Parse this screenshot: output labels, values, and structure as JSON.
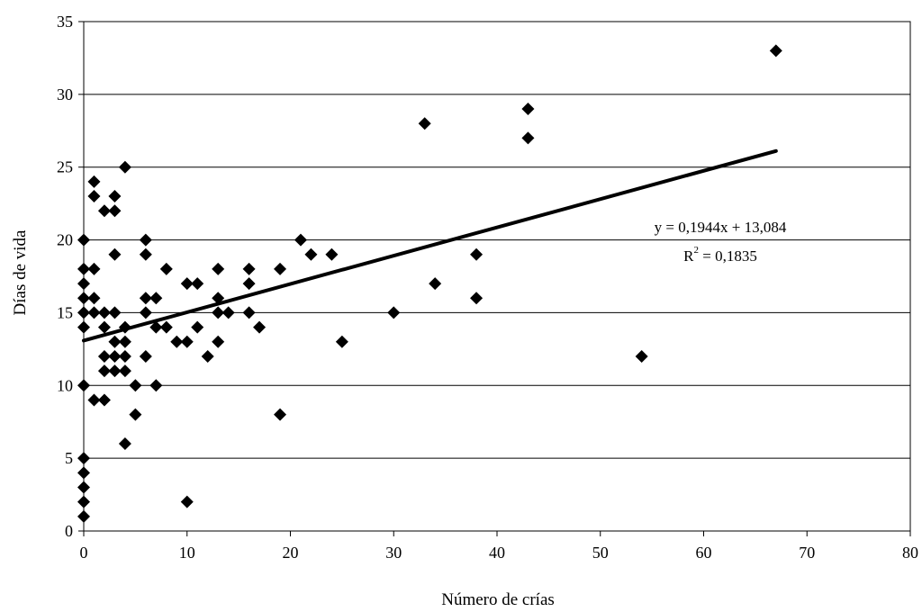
{
  "chart_data": {
    "type": "scatter",
    "title": "",
    "xlabel": "Número de crías",
    "ylabel": "Días de vida",
    "xlim": [
      0,
      80
    ],
    "ylim": [
      0,
      35
    ],
    "xticks": [
      0,
      10,
      20,
      30,
      40,
      50,
      60,
      70,
      80
    ],
    "yticks": [
      0,
      5,
      10,
      15,
      20,
      25,
      30,
      35
    ],
    "grid": "horizontal",
    "legend": "none",
    "marker": "diamond",
    "color": "#000000",
    "points": [
      {
        "x": 0,
        "y": 1
      },
      {
        "x": 0,
        "y": 2
      },
      {
        "x": 0,
        "y": 3
      },
      {
        "x": 0,
        "y": 4
      },
      {
        "x": 0,
        "y": 5
      },
      {
        "x": 0,
        "y": 10
      },
      {
        "x": 0,
        "y": 14
      },
      {
        "x": 0,
        "y": 15
      },
      {
        "x": 0,
        "y": 16
      },
      {
        "x": 0,
        "y": 17
      },
      {
        "x": 0,
        "y": 18
      },
      {
        "x": 0,
        "y": 20
      },
      {
        "x": 1,
        "y": 9
      },
      {
        "x": 1,
        "y": 15
      },
      {
        "x": 1,
        "y": 16
      },
      {
        "x": 1,
        "y": 18
      },
      {
        "x": 1,
        "y": 23
      },
      {
        "x": 1,
        "y": 24
      },
      {
        "x": 2,
        "y": 9
      },
      {
        "x": 2,
        "y": 11
      },
      {
        "x": 2,
        "y": 12
      },
      {
        "x": 2,
        "y": 14
      },
      {
        "x": 2,
        "y": 15
      },
      {
        "x": 2,
        "y": 22
      },
      {
        "x": 3,
        "y": 11
      },
      {
        "x": 3,
        "y": 12
      },
      {
        "x": 3,
        "y": 13
      },
      {
        "x": 3,
        "y": 15
      },
      {
        "x": 3,
        "y": 19
      },
      {
        "x": 3,
        "y": 22
      },
      {
        "x": 3,
        "y": 23
      },
      {
        "x": 4,
        "y": 6
      },
      {
        "x": 4,
        "y": 11
      },
      {
        "x": 4,
        "y": 12
      },
      {
        "x": 4,
        "y": 13
      },
      {
        "x": 4,
        "y": 14
      },
      {
        "x": 4,
        "y": 25
      },
      {
        "x": 5,
        "y": 8
      },
      {
        "x": 5,
        "y": 10
      },
      {
        "x": 6,
        "y": 12
      },
      {
        "x": 6,
        "y": 15
      },
      {
        "x": 6,
        "y": 16
      },
      {
        "x": 6,
        "y": 19
      },
      {
        "x": 6,
        "y": 20
      },
      {
        "x": 7,
        "y": 10
      },
      {
        "x": 7,
        "y": 14
      },
      {
        "x": 7,
        "y": 16
      },
      {
        "x": 8,
        "y": 14
      },
      {
        "x": 8,
        "y": 18
      },
      {
        "x": 9,
        "y": 13
      },
      {
        "x": 10,
        "y": 2
      },
      {
        "x": 10,
        "y": 13
      },
      {
        "x": 10,
        "y": 17
      },
      {
        "x": 11,
        "y": 14
      },
      {
        "x": 11,
        "y": 17
      },
      {
        "x": 12,
        "y": 12
      },
      {
        "x": 13,
        "y": 13
      },
      {
        "x": 13,
        "y": 15
      },
      {
        "x": 13,
        "y": 16
      },
      {
        "x": 13,
        "y": 18
      },
      {
        "x": 14,
        "y": 15
      },
      {
        "x": 16,
        "y": 15
      },
      {
        "x": 16,
        "y": 17
      },
      {
        "x": 16,
        "y": 18
      },
      {
        "x": 17,
        "y": 14
      },
      {
        "x": 19,
        "y": 8
      },
      {
        "x": 19,
        "y": 18
      },
      {
        "x": 21,
        "y": 20
      },
      {
        "x": 22,
        "y": 19
      },
      {
        "x": 24,
        "y": 19
      },
      {
        "x": 25,
        "y": 13
      },
      {
        "x": 30,
        "y": 15
      },
      {
        "x": 33,
        "y": 28
      },
      {
        "x": 34,
        "y": 17
      },
      {
        "x": 38,
        "y": 16
      },
      {
        "x": 38,
        "y": 19
      },
      {
        "x": 43,
        "y": 27
      },
      {
        "x": 43,
        "y": 29
      },
      {
        "x": 54,
        "y": 12
      },
      {
        "x": 67,
        "y": 33
      }
    ],
    "trendline": {
      "slope": 0.1944,
      "intercept": 13.084,
      "x_range": [
        0,
        67
      ],
      "equation_text": "y = 0,1944x + 13,084",
      "r2_prefix": "R",
      "r2_exponent": "2",
      "r2_value": " = 0,1835"
    }
  }
}
